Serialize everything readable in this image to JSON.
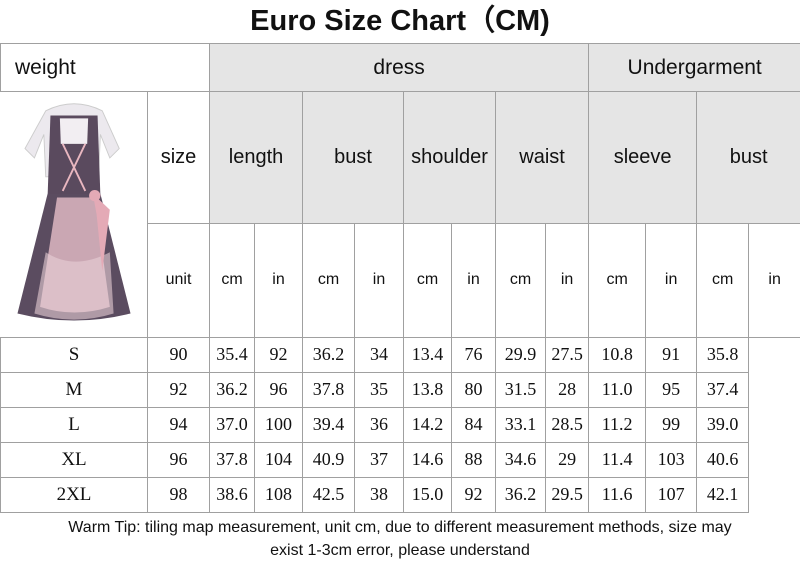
{
  "title": "Euro Size Chart（CM)",
  "header": {
    "weight": "weight",
    "dress": "dress",
    "undergarment": "Undergarment",
    "size": "size",
    "unit": "unit",
    "measures": [
      "length",
      "bust",
      "shoulder",
      "waist",
      "sleeve",
      "bust"
    ],
    "units": [
      "cm",
      "in",
      "cm",
      "in",
      "cm",
      "in",
      "cm",
      "in",
      "cm",
      "in",
      "cm",
      "in"
    ]
  },
  "rows": [
    {
      "size": "S",
      "values": [
        "90",
        "35.4",
        "92",
        "36.2",
        "34",
        "13.4",
        "76",
        "29.9",
        "27.5",
        "10.8",
        "91",
        "35.8"
      ]
    },
    {
      "size": "M",
      "values": [
        "92",
        "36.2",
        "96",
        "37.8",
        "35",
        "13.8",
        "80",
        "31.5",
        "28",
        "11.0",
        "95",
        "37.4"
      ]
    },
    {
      "size": "L",
      "values": [
        "94",
        "37.0",
        "100",
        "39.4",
        "36",
        "14.2",
        "84",
        "33.1",
        "28.5",
        "11.2",
        "99",
        "39.0"
      ]
    },
    {
      "size": "XL",
      "values": [
        "96",
        "37.8",
        "104",
        "40.9",
        "37",
        "14.6",
        "88",
        "34.6",
        "29",
        "11.4",
        "103",
        "40.6"
      ]
    },
    {
      "size": "2XL",
      "values": [
        "98",
        "38.6",
        "108",
        "42.5",
        "38",
        "15.0",
        "92",
        "36.2",
        "29.5",
        "11.6",
        "107",
        "42.1"
      ]
    }
  ],
  "footer": {
    "line1": "Warm Tip: tiling map measurement, unit cm, due to different measurement methods, size may",
    "line2": "exist 1-3cm error, please understand"
  },
  "colors": {
    "header_gray": "#e5e5e5",
    "grid": "#a0a0a0"
  }
}
